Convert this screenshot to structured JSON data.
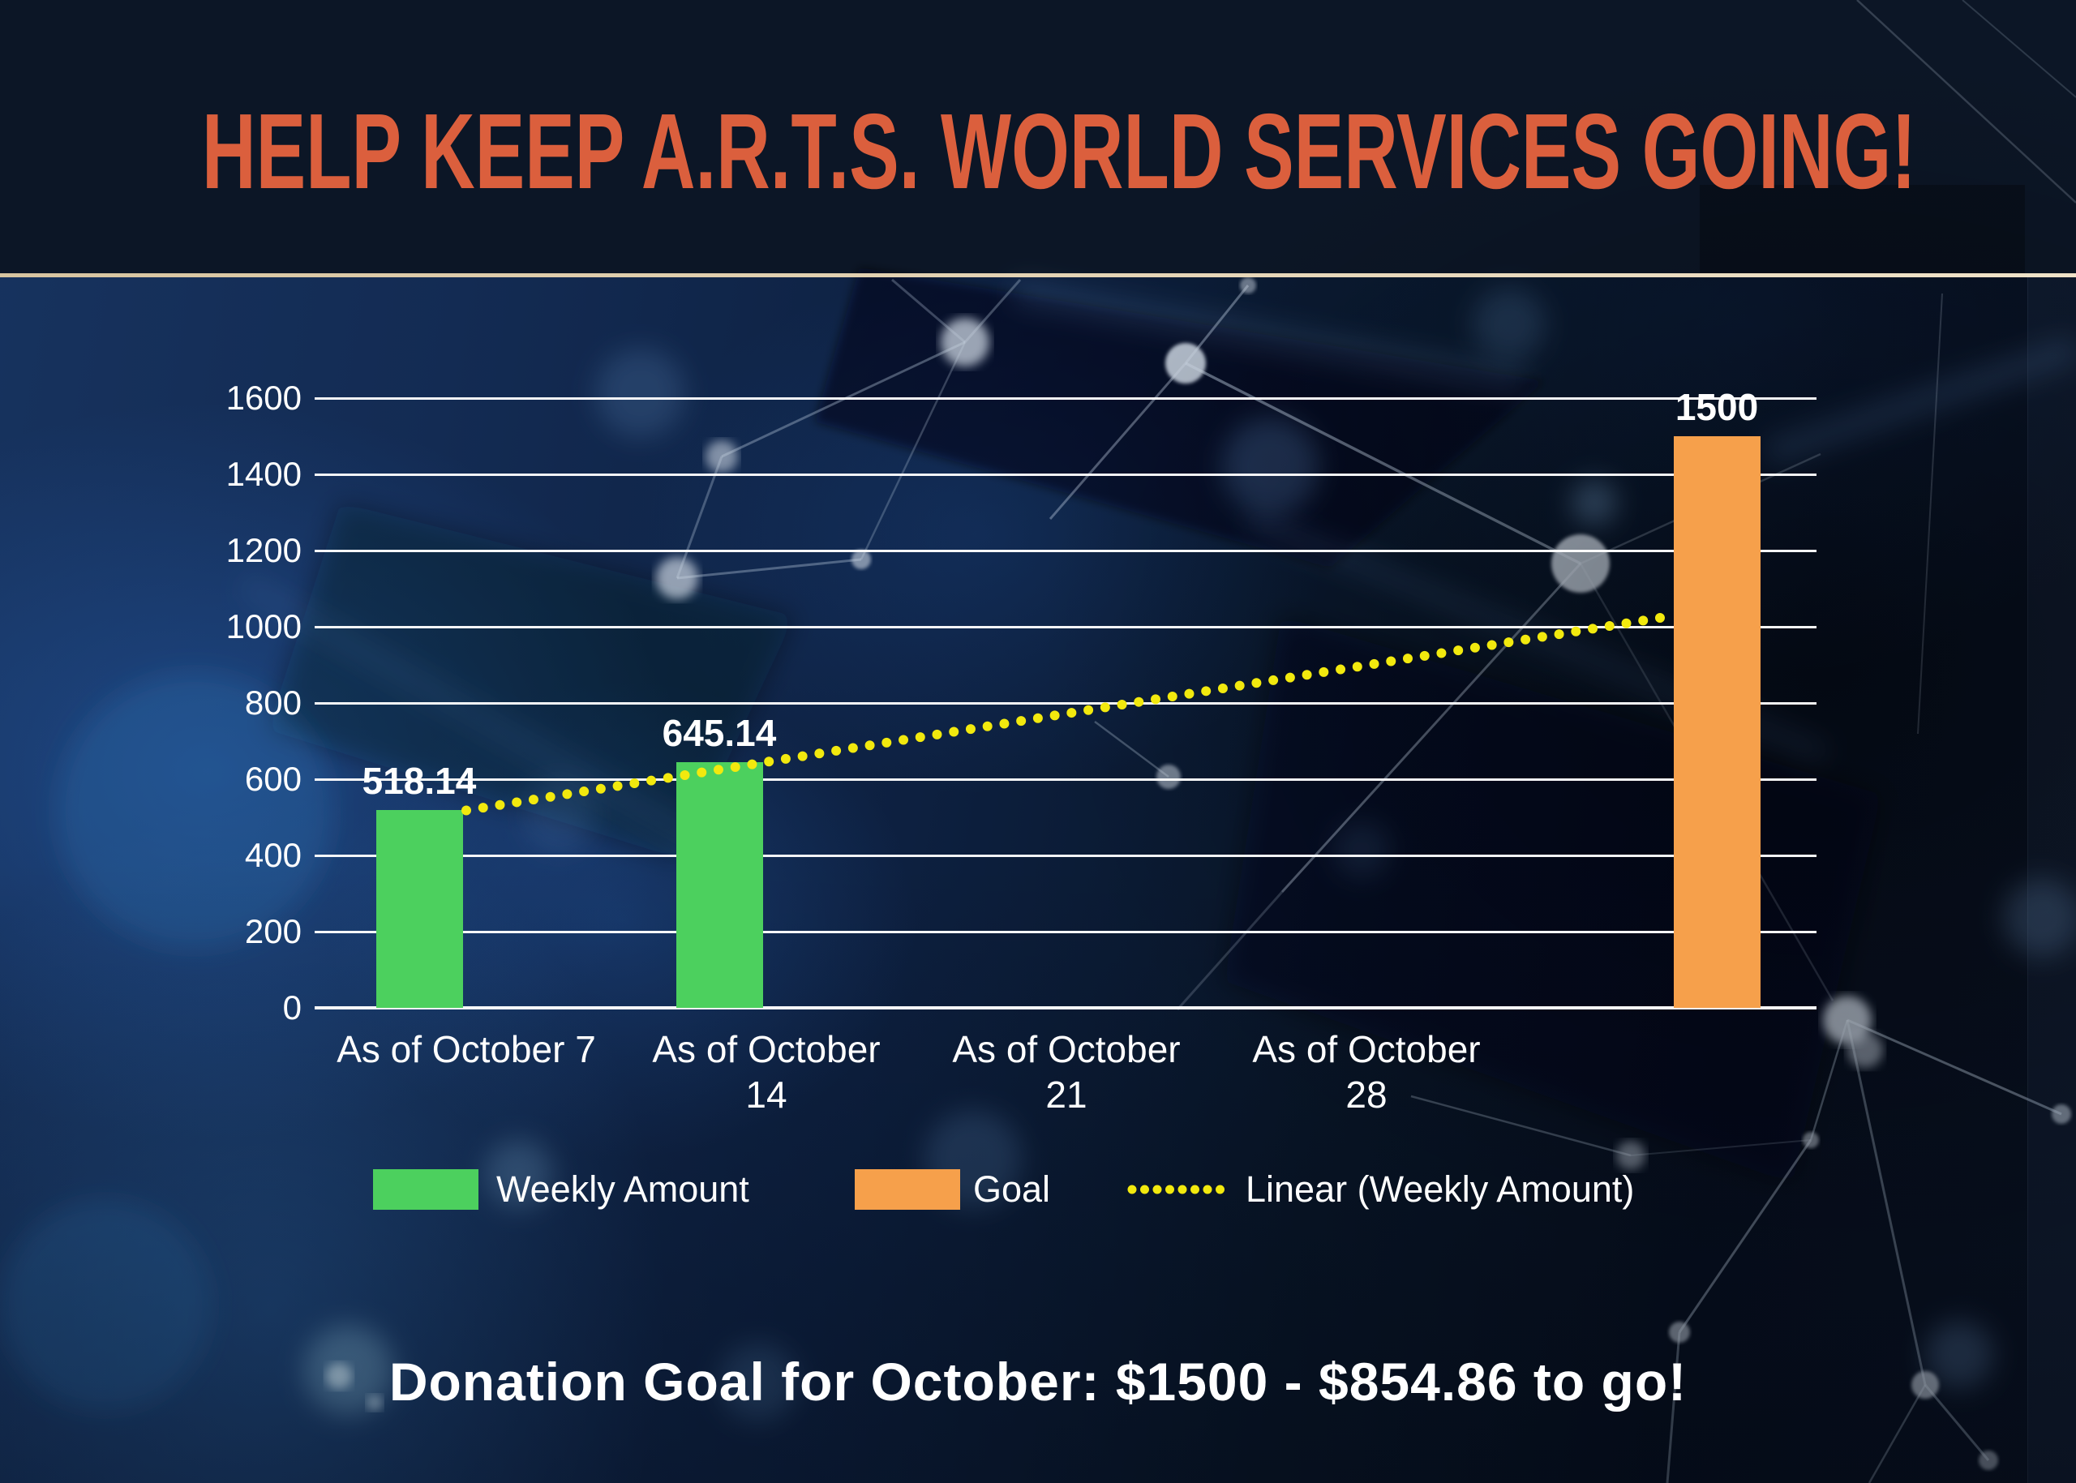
{
  "slide": {
    "title": "HELP KEEP A.R.T.S. WORLD SERVICES GOING!",
    "footer": "Donation Goal for October: $1500 - $854.86 to go!"
  },
  "colors": {
    "title": "#db5f3d",
    "background": "#0c1626",
    "divider": "#e0cfa9",
    "grid": "#ffffff",
    "text": "#ffffff",
    "weekly_amount": "#4cd05e",
    "goal": "#f6a04b",
    "trend": "#f2e90e"
  },
  "chart_data": {
    "type": "bar",
    "title": "",
    "xlabel": "",
    "ylabel": "",
    "ylim": [
      0,
      1600
    ],
    "yticks": [
      0,
      200,
      400,
      600,
      800,
      1000,
      1200,
      1400,
      1600
    ],
    "grid": true,
    "legend_position": "bottom",
    "categories": [
      {
        "lines": [
          "As of October 7"
        ]
      },
      {
        "lines": [
          "As of October",
          "14"
        ]
      },
      {
        "lines": [
          "As of October",
          "21"
        ]
      },
      {
        "lines": [
          "As of October",
          "28"
        ]
      },
      {
        "lines": []
      }
    ],
    "series": [
      {
        "name": "Weekly Amount",
        "color": "#4cd05e",
        "values": [
          518.14,
          645.14,
          null,
          null,
          null
        ],
        "labels": [
          "518.14",
          "645.14",
          null,
          null,
          null
        ]
      },
      {
        "name": "Goal",
        "color": "#f6a04b",
        "values": [
          null,
          null,
          null,
          null,
          1500
        ],
        "labels": [
          null,
          null,
          null,
          null,
          "1500"
        ]
      }
    ],
    "trendline": {
      "name": "Linear (Weekly Amount)",
      "color": "#f2e90e",
      "style": "dotted",
      "based_on": "Weekly Amount",
      "endpoint_values": [
        518.14,
        1026.14
      ]
    }
  },
  "legend": [
    {
      "label": "Weekly Amount",
      "swatch": "rect",
      "color": "#4cd05e"
    },
    {
      "label": "Goal",
      "swatch": "rect",
      "color": "#f6a04b"
    },
    {
      "label": "Linear (Weekly Amount)",
      "swatch": "dots",
      "color": "#f2e90e"
    }
  ]
}
